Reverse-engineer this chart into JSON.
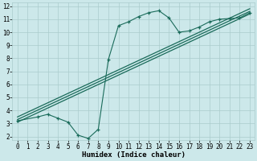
{
  "xlabel": "Humidex (Indice chaleur)",
  "bg_color": "#cce8ea",
  "grid_color": "#aacccc",
  "line_color": "#1a6b5a",
  "xlim": [
    -0.5,
    23.5
  ],
  "ylim": [
    1.7,
    12.3
  ],
  "xticks": [
    0,
    1,
    2,
    3,
    4,
    5,
    6,
    7,
    8,
    9,
    10,
    11,
    12,
    13,
    14,
    15,
    16,
    17,
    18,
    19,
    20,
    21,
    22,
    23
  ],
  "yticks": [
    2,
    3,
    4,
    5,
    6,
    7,
    8,
    9,
    10,
    11,
    12
  ],
  "curve1_x": [
    0,
    2,
    3,
    4,
    5,
    6,
    7,
    8,
    9,
    10,
    11,
    12,
    13,
    14,
    15,
    16,
    17,
    18,
    19,
    20,
    21,
    22,
    23
  ],
  "curve1_y": [
    3.2,
    3.5,
    3.7,
    3.4,
    3.1,
    2.1,
    1.85,
    2.55,
    7.9,
    10.5,
    10.8,
    11.2,
    11.5,
    11.65,
    11.1,
    10.0,
    10.1,
    10.4,
    10.8,
    11.0,
    11.05,
    11.1,
    11.5
  ],
  "line1_x": [
    0,
    23
  ],
  "line1_y": [
    3.1,
    11.4
  ],
  "line2_x": [
    0,
    23
  ],
  "line2_y": [
    3.3,
    11.6
  ],
  "line3_x": [
    0,
    23
  ],
  "line3_y": [
    3.5,
    11.8
  ],
  "xtick_labels": [
    "0",
    "1",
    "2",
    "3",
    "4",
    "5",
    "6",
    "7",
    "8",
    "9",
    "10",
    "11",
    "12",
    "13",
    "14",
    "15",
    "16",
    "17",
    "18",
    "19",
    "20",
    "21",
    "22",
    "23"
  ],
  "ytick_labels": [
    "2",
    "3",
    "4",
    "5",
    "6",
    "7",
    "8",
    "9",
    "10",
    "11",
    "12"
  ],
  "tick_fontsize": 5.5,
  "xlabel_fontsize": 6.5
}
